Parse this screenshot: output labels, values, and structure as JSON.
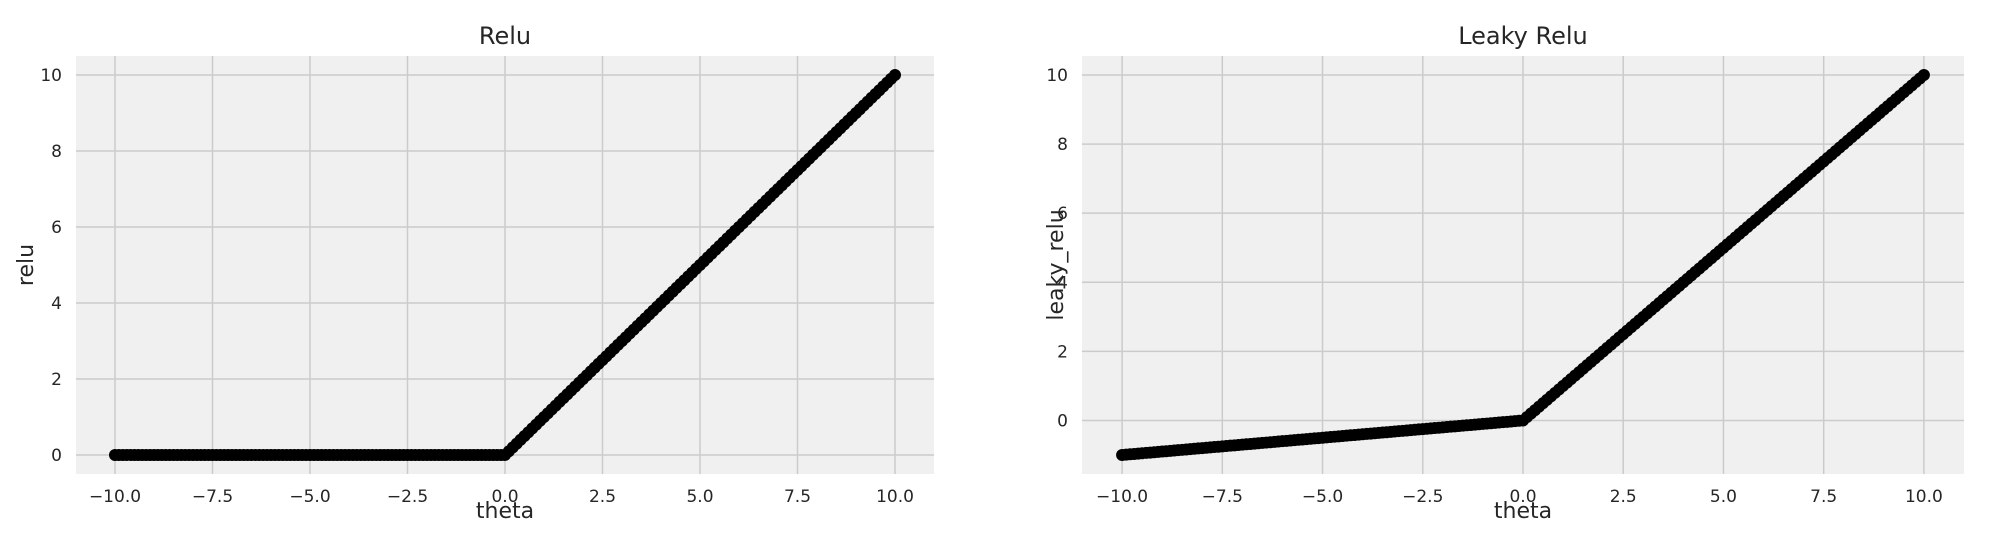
{
  "chart_data": [
    {
      "type": "scatter",
      "title": "Relu",
      "xlabel": "theta",
      "ylabel": "relu",
      "xlim": [
        -11,
        11
      ],
      "ylim": [
        -0.5,
        10.5
      ],
      "xticks": [
        -10,
        -7.5,
        -5,
        -2.5,
        0,
        2.5,
        5,
        7.5,
        10
      ],
      "xtick_labels": [
        "−10.0",
        "−7.5",
        "−5.0",
        "−2.5",
        "0.0",
        "2.5",
        "5.0",
        "7.5",
        "10.0"
      ],
      "yticks": [
        0,
        2,
        4,
        6,
        8,
        10
      ],
      "ytick_labels": [
        "0",
        "2",
        "4",
        "6",
        "8",
        "10"
      ],
      "grid": true,
      "marker_color": "#000000",
      "series": [
        {
          "x": [
            -10,
            -9,
            -8,
            -7,
            -6,
            -5,
            -4,
            -3,
            -2,
            -1,
            0,
            1,
            2,
            3,
            4,
            5,
            6,
            7,
            8,
            9,
            10
          ],
          "y": [
            0,
            0,
            0,
            0,
            0,
            0,
            0,
            0,
            0,
            0,
            0,
            1,
            2,
            3,
            4,
            5,
            6,
            7,
            8,
            9,
            10
          ]
        }
      ]
    },
    {
      "type": "scatter",
      "title": "Leaky Relu",
      "xlabel": "theta",
      "ylabel": "leaky_relu",
      "xlim": [
        -11,
        11
      ],
      "ylim": [
        -1.55,
        10.55
      ],
      "xticks": [
        -10,
        -7.5,
        -5,
        -2.5,
        0,
        2.5,
        5,
        7.5,
        10
      ],
      "xtick_labels": [
        "−10.0",
        "−7.5",
        "−5.0",
        "−2.5",
        "0.0",
        "2.5",
        "5.0",
        "7.5",
        "10.0"
      ],
      "yticks": [
        0,
        2,
        4,
        6,
        8,
        10
      ],
      "ytick_labels": [
        "0",
        "2",
        "4",
        "6",
        "8",
        "10"
      ],
      "grid": true,
      "marker_color": "#000000",
      "series": [
        {
          "x": [
            -10,
            -9,
            -8,
            -7,
            -6,
            -5,
            -4,
            -3,
            -2,
            -1,
            0,
            1,
            2,
            3,
            4,
            5,
            6,
            7,
            8,
            9,
            10
          ],
          "y": [
            -1,
            -0.9,
            -0.8,
            -0.7,
            -0.6,
            -0.5,
            -0.4,
            -0.3,
            -0.2,
            -0.1,
            0,
            1,
            2,
            3,
            4,
            5,
            6,
            7,
            8,
            9,
            10
          ]
        }
      ]
    }
  ]
}
